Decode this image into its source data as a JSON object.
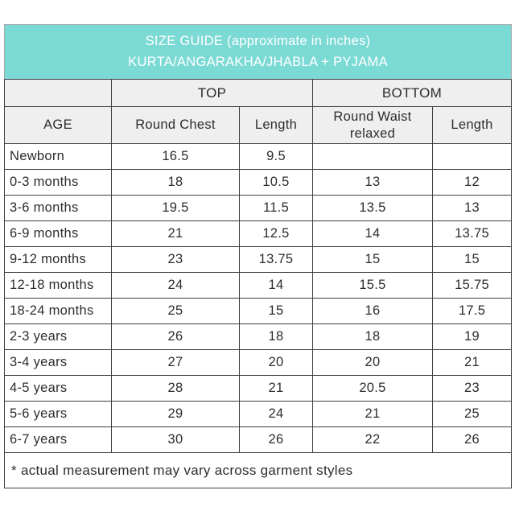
{
  "header": {
    "title_line1": "SIZE GUIDE (approximate in inches)",
    "title_line2": "KURTA/ANGARAKHA/JHABLA + PYJAMA"
  },
  "groups": {
    "top_label": "TOP",
    "bottom_label": "BOTTOM"
  },
  "table": {
    "col_headers": [
      "AGE",
      "Round Chest",
      "Length",
      "Round Waist relaxed",
      "Length"
    ],
    "rows": [
      [
        "Newborn",
        "16.5",
        "9.5",
        "",
        ""
      ],
      [
        "0-3 months",
        "18",
        "10.5",
        "13",
        "12"
      ],
      [
        "3-6 months",
        "19.5",
        "11.5",
        "13.5",
        "13"
      ],
      [
        "6-9 months",
        "21",
        "12.5",
        "14",
        "13.75"
      ],
      [
        "9-12 months",
        "23",
        "13.75",
        "15",
        "15"
      ],
      [
        "12-18 months",
        "24",
        "14",
        "15.5",
        "15.75"
      ],
      [
        "18-24 months",
        "25",
        "15",
        "16",
        "17.5"
      ],
      [
        "2-3 years",
        "26",
        "18",
        "18",
        "19"
      ],
      [
        "3-4 years",
        "27",
        "20",
        "20",
        "21"
      ],
      [
        "4-5 years",
        "28",
        "21",
        "20.5",
        "23"
      ],
      [
        "5-6 years",
        "29",
        "24",
        "21",
        "25"
      ],
      [
        "6-7 years",
        "30",
        "26",
        "22",
        "26"
      ]
    ]
  },
  "footnote": "* actual measurement may vary across garment styles",
  "colors": {
    "accent_teal": "#7cdad5",
    "header_gray": "#efefef",
    "border": "#3f3f3f",
    "title_text": "#ffffff",
    "body_text": "#2d2d2d"
  }
}
